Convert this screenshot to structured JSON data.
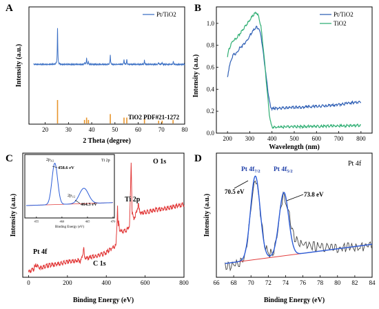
{
  "chart_data": [
    {
      "panel": "A",
      "type": "line",
      "xlabel": "2 Theta (degree)",
      "ylabel": "Intensity (a.u.)",
      "xlim": [
        13,
        80
      ],
      "xticks": [
        20,
        30,
        40,
        50,
        60,
        70,
        80
      ],
      "legend": {
        "placement": "top-right",
        "entries": [
          "Pt/TiO2"
        ]
      },
      "series": [
        {
          "name": "Pt/TiO2",
          "color": "#3a6fc4",
          "baseline": 0.72,
          "peaks": [
            {
              "x": 25.3,
              "h": 1.0
            },
            {
              "x": 37.0,
              "h": 0.06
            },
            {
              "x": 37.8,
              "h": 0.18
            },
            {
              "x": 38.6,
              "h": 0.07
            },
            {
              "x": 48.0,
              "h": 0.27
            },
            {
              "x": 53.9,
              "h": 0.14
            },
            {
              "x": 55.1,
              "h": 0.13
            },
            {
              "x": 62.7,
              "h": 0.12
            },
            {
              "x": 68.8,
              "h": 0.06
            },
            {
              "x": 70.3,
              "h": 0.06
            },
            {
              "x": 75.1,
              "h": 0.08
            }
          ]
        }
      ],
      "reference": {
        "label": "TiO2 PDF#21-1272",
        "color": "#e8952b",
        "sticks": [
          {
            "x": 25.3,
            "h": 1.0
          },
          {
            "x": 36.9,
            "h": 0.15
          },
          {
            "x": 37.8,
            "h": 0.25
          },
          {
            "x": 38.6,
            "h": 0.15
          },
          {
            "x": 48.0,
            "h": 0.4
          },
          {
            "x": 53.9,
            "h": 0.25
          },
          {
            "x": 55.1,
            "h": 0.25
          },
          {
            "x": 62.7,
            "h": 0.2
          },
          {
            "x": 68.8,
            "h": 0.12
          },
          {
            "x": 70.3,
            "h": 0.12
          },
          {
            "x": 75.0,
            "h": 0.15
          }
        ]
      }
    },
    {
      "panel": "B",
      "type": "line",
      "xlabel": "Wavelength (nm)",
      "ylabel": "Intensity (a.u.)",
      "xlim": [
        150,
        850
      ],
      "ylim": [
        0.0,
        1.15
      ],
      "xticks": [
        200,
        300,
        400,
        500,
        600,
        700,
        800
      ],
      "yticks": [
        0.0,
        0.2,
        0.4,
        0.6,
        0.8,
        1.0
      ],
      "legend": {
        "placement": "top-right",
        "entries": [
          "Pt/TiO2",
          "TiO2"
        ]
      },
      "series": [
        {
          "name": "Pt/TiO2",
          "color": "#2f5fb5",
          "x": [
            200,
            205,
            215,
            225,
            240,
            255,
            265,
            280,
            295,
            305,
            320,
            330,
            340,
            350,
            360,
            370,
            380,
            388,
            395,
            400,
            420,
            450,
            500,
            550,
            600,
            650,
            700,
            750,
            800
          ],
          "y": [
            0.51,
            0.58,
            0.66,
            0.72,
            0.73,
            0.78,
            0.8,
            0.83,
            0.87,
            0.91,
            0.95,
            0.97,
            0.96,
            0.9,
            0.75,
            0.58,
            0.42,
            0.3,
            0.24,
            0.23,
            0.232,
            0.235,
            0.24,
            0.245,
            0.25,
            0.255,
            0.265,
            0.28,
            0.295
          ]
        },
        {
          "name": "TiO2",
          "color": "#2fae73",
          "x": [
            200,
            205,
            215,
            225,
            240,
            255,
            265,
            280,
            295,
            305,
            320,
            330,
            340,
            350,
            360,
            370,
            380,
            388,
            395,
            400,
            420,
            450,
            500,
            550,
            600,
            650,
            700,
            750,
            800
          ],
          "y": [
            0.7,
            0.76,
            0.81,
            0.85,
            0.87,
            0.91,
            0.94,
            0.98,
            1.02,
            1.05,
            1.09,
            1.1,
            1.07,
            0.98,
            0.8,
            0.58,
            0.35,
            0.18,
            0.09,
            0.06,
            0.06,
            0.062,
            0.065,
            0.066,
            0.068,
            0.07,
            0.072,
            0.074,
            0.076
          ]
        }
      ]
    },
    {
      "panel": "C",
      "type": "line",
      "xlabel": "Binding Energy (eV)",
      "ylabel": "Intensity (a.u.)",
      "xlim": [
        -30,
        800
      ],
      "xticks": [
        0,
        200,
        400,
        600,
        800
      ],
      "annotations": [
        "Pt 4f",
        "C 1s",
        "Ti 2p",
        "O 1s"
      ],
      "series": [
        {
          "name": "",
          "color": "#e23b3b",
          "x": [
            0,
            20,
            40,
            60,
            80,
            100,
            150,
            200,
            250,
            270,
            280,
            284,
            288,
            300,
            350,
            400,
            430,
            450,
            455,
            458,
            460,
            462,
            464,
            468,
            480,
            500,
            510,
            520,
            525,
            528,
            530,
            533,
            540,
            550,
            560,
            565,
            570,
            580,
            600,
            650,
            700,
            750,
            800
          ],
          "y": [
            0.03,
            0.05,
            0.09,
            0.07,
            0.08,
            0.09,
            0.1,
            0.12,
            0.13,
            0.13,
            0.2,
            0.24,
            0.16,
            0.15,
            0.17,
            0.2,
            0.24,
            0.26,
            0.45,
            0.62,
            0.48,
            0.42,
            0.46,
            0.4,
            0.38,
            0.39,
            0.4,
            0.45,
            0.75,
            1.0,
            0.82,
            0.55,
            0.5,
            0.52,
            0.58,
            0.62,
            0.57,
            0.54,
            0.55,
            0.57,
            0.58,
            0.6,
            0.62
          ]
        }
      ]
    },
    {
      "panel": "C-inset",
      "type": "line",
      "title": "Ti 2p",
      "xlabel": "Binding Energy (eV)",
      "xlim": [
        453,
        470
      ],
      "xticks": [
        455,
        460,
        465,
        470
      ],
      "annotations": [
        {
          "label": "2p3/2",
          "sub_text": "3/2",
          "value": "458.6 eV"
        },
        {
          "label": "2p1/2",
          "sub_text": "1/2",
          "value": "464.3 eV"
        }
      ],
      "peaks": [
        {
          "x": 458.6,
          "h": 1.0,
          "w": 0.55
        },
        {
          "x": 464.3,
          "h": 0.37,
          "w": 0.9
        }
      ]
    },
    {
      "panel": "D",
      "type": "line",
      "title": "Pt 4f",
      "xlabel": "Binding Energy (eV)",
      "ylabel": "Intensity (a.u.)",
      "xlim": [
        66,
        84
      ],
      "xticks": [
        66,
        68,
        70,
        72,
        74,
        76,
        78,
        80,
        82,
        84
      ],
      "annotations": [
        {
          "label": "Pt 4f7/2",
          "sub_text": "7/2",
          "value": "70.5 eV"
        },
        {
          "label": "Pt 4f5/2",
          "sub_text": "5/2",
          "value": "73.8 eV"
        }
      ],
      "peaks": [
        {
          "x": 70.5,
          "h": 1.0,
          "w": 0.55
        },
        {
          "x": 73.8,
          "h": 0.76,
          "w": 0.55
        }
      ],
      "background": {
        "x": [
          67,
          84
        ],
        "y": [
          0.0,
          0.23
        ]
      }
    }
  ],
  "panels": {
    "A": {
      "label": "A"
    },
    "B": {
      "label": "B"
    },
    "C": {
      "label": "C"
    },
    "D": {
      "label": "D"
    }
  },
  "colors": {
    "pt_tio2": "#3a6fc4",
    "tio2_uv": "#2fae73",
    "reference": "#e8952b",
    "survey": "#e23b3b",
    "fit_peak": "#2a5bd7",
    "fit_background": "#e23b3b",
    "raw": "#444444",
    "label_blue": "#1f3fa8"
  }
}
